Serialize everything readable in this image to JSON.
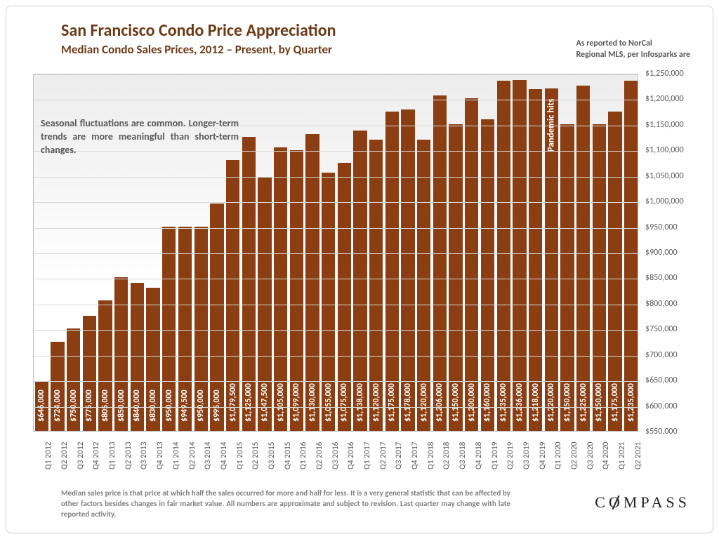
{
  "title": "San Francisco Condo Price Appreciation",
  "subtitle": "Median Condo Sales Prices, 2012 – Present, by Quarter",
  "source_line1": "As reported to NorCal",
  "source_line2": "Regional MLS, per Infosparks are",
  "note_box": "Seasonal fluctuations are common. Longer-term trends are more meaningful than short-term changes.",
  "pandemic_label": "Pandemic hits",
  "pandemic_index": 32,
  "footer": "Median sales price is that price at which half the sales occurred for more and half for less. It is a very general statistic that can be affected by other factors besides changes in fair market value. All numbers are approximate and subject to revision. Last quarter may change with late reported activity.",
  "logo_text": "COMPASS",
  "chart": {
    "type": "bar",
    "bar_color": "#8a3e12",
    "background_gradient_top": "#ededed",
    "background_gradient_bottom": "#ffffff",
    "grid_color": "#d9d9d9",
    "plot_border_color": "#bfbfbf",
    "ylim": [
      550000,
      1250000
    ],
    "ytick_step": 50000,
    "ytick_prefix": "$",
    "value_label_color": "#ffffff",
    "value_label_fontsize": 12,
    "xlabel_fontsize": 11.5,
    "bar_gap_ratio": 0.15,
    "title_color": "#6b3a16",
    "title_fontsize": 24,
    "subtitle_fontsize": 17,
    "categories": [
      "Q1 2012",
      "Q2 2012",
      "Q3 2012",
      "Q4 2012",
      "Q1 2013",
      "Q2 2013",
      "Q3 2013",
      "Q4 2013",
      "Q1 2014",
      "Q2 2014",
      "Q3 2014",
      "Q4 2014",
      "Q1 2015",
      "Q2 2015",
      "Q3 2015",
      "Q4 2015",
      "Q1 2016",
      "Q2 2016",
      "Q3 2016",
      "Q4 2016",
      "Q1 2017",
      "Q2 2017",
      "Q3 2017",
      "Q4 2017",
      "Q1 2018",
      "Q2 2018",
      "Q3 2018",
      "Q4 2018",
      "Q1 2019",
      "Q2 2019",
      "Q3 2019",
      "Q4 2019",
      "Q1 2020",
      "Q2 2020",
      "Q3 2020",
      "Q4 2020",
      "Q1 2021",
      "Q2 2021"
    ],
    "values": [
      646000,
      724000,
      750000,
      775000,
      805000,
      850000,
      840000,
      830000,
      950000,
      949500,
      950000,
      995000,
      1079500,
      1125000,
      1047500,
      1105000,
      1099000,
      1130000,
      1055000,
      1075000,
      1138000,
      1120000,
      1175000,
      1178000,
      1120000,
      1206000,
      1150000,
      1200000,
      1160000,
      1235000,
      1236000,
      1218000,
      1220000,
      1150000,
      1225000,
      1150000,
      1175000,
      1235000
    ],
    "value_labels": [
      "$646,000",
      "$724,000",
      "$750,000",
      "$775,000",
      "$805,000",
      "$850,000",
      "$840,000",
      "$830,000",
      "$950,000",
      "$949,500",
      "$950,000",
      "$995,000",
      "$1,079,500",
      "$1,125,000",
      "$1,047,500",
      "$1,105,000",
      "$1,099,000",
      "$1,130,000",
      "$1,055,000",
      "$1,075,000",
      "$1,138,000",
      "$1,120,000",
      "$1,175,000",
      "$1,178,000",
      "$1,120,000",
      "$1,206,000",
      "$1,150,000",
      "$1,200,000",
      "$1,160,000",
      "$1,235,000",
      "$1,236,000",
      "$1,218,000",
      "$1,220,000",
      "$1,150,000",
      "$1,225,000",
      "$1,150,000",
      "$1,175,000",
      "$1,235,000"
    ]
  }
}
